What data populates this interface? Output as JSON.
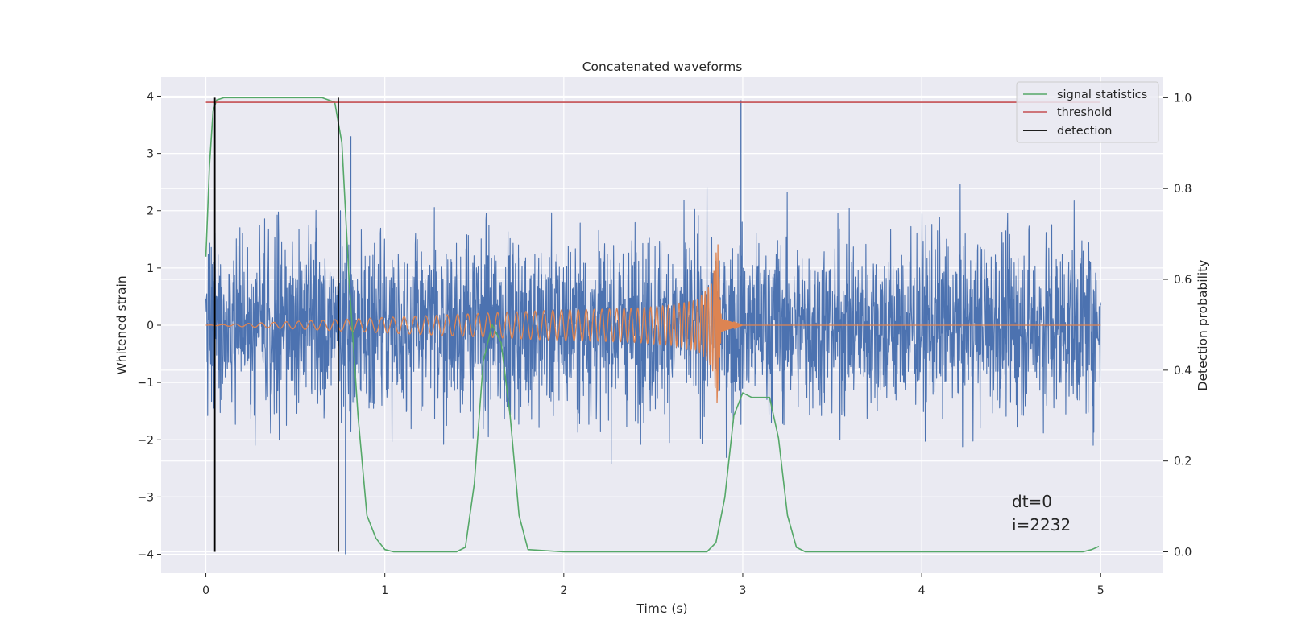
{
  "chart_data": {
    "type": "line",
    "title": "Concatenated waveforms",
    "xlabel": "Time (s)",
    "ylabel": "Whitened strain",
    "ylabel_right": "Detection probability",
    "xlim": [
      -0.25,
      5.35
    ],
    "ylim": [
      -4.33,
      4.33
    ],
    "ylim_right": [
      -0.047,
      1.045
    ],
    "x_ticks": [
      0,
      1,
      2,
      3,
      4,
      5
    ],
    "y_ticks": [
      -4,
      -3,
      -2,
      -1,
      0,
      1,
      2,
      3,
      4
    ],
    "y_ticks_right": [
      0.0,
      0.2,
      0.4,
      0.6,
      0.8,
      1.0
    ],
    "x_tick_labels": [
      "0",
      "1",
      "2",
      "3",
      "4",
      "5"
    ],
    "y_tick_labels": [
      "−4",
      "−3",
      "−2",
      "−1",
      "0",
      "1",
      "2",
      "3",
      "4"
    ],
    "y_tick_labels_right": [
      "0.0",
      "0.2",
      "0.4",
      "0.6",
      "0.8",
      "1.0"
    ],
    "grid": true,
    "legend_position": "top-right",
    "colors": {
      "strain": "#4c72b0",
      "template": "#dd8452",
      "signal_statistics": "#55a868",
      "threshold": "#c44e52",
      "detection": "#000000",
      "background": "#eaeaf2"
    },
    "series": [
      {
        "name": "",
        "axis": "left",
        "kind": "noise",
        "x_range": [
          0,
          5
        ],
        "amplitude_typical": 1.5,
        "y_max": 3.93,
        "y_min": -4.0
      },
      {
        "name": "",
        "axis": "left",
        "kind": "chirp",
        "x": [
          0.0,
          2.0,
          2.2,
          2.4,
          2.6,
          2.75,
          2.83,
          2.86,
          2.88,
          3.0,
          5.0
        ],
        "envelope": [
          0.0,
          0.27,
          0.28,
          0.3,
          0.35,
          0.45,
          0.75,
          1.5,
          0.15,
          0.0,
          0.0
        ]
      },
      {
        "name": "signal statistics",
        "axis": "right",
        "x": [
          0.0,
          0.02,
          0.04,
          0.06,
          0.1,
          0.65,
          0.72,
          0.76,
          0.8,
          0.85,
          0.9,
          0.95,
          1.0,
          1.05,
          1.4,
          1.45,
          1.5,
          1.55,
          1.6,
          1.65,
          1.7,
          1.75,
          1.8,
          2.0,
          2.8,
          2.85,
          2.9,
          2.95,
          3.0,
          3.05,
          3.1,
          3.15,
          3.2,
          3.25,
          3.3,
          3.35,
          4.9,
          4.95,
          4.99
        ],
        "values": [
          0.65,
          0.85,
          0.97,
          0.995,
          1.0,
          1.0,
          0.99,
          0.9,
          0.6,
          0.3,
          0.08,
          0.03,
          0.005,
          0.0,
          0.0,
          0.01,
          0.15,
          0.42,
          0.5,
          0.46,
          0.3,
          0.08,
          0.005,
          0.0,
          0.0,
          0.02,
          0.12,
          0.3,
          0.35,
          0.34,
          0.34,
          0.34,
          0.25,
          0.08,
          0.01,
          0.0,
          0.0,
          0.005,
          0.012
        ]
      },
      {
        "name": "threshold",
        "axis": "right",
        "x": [
          0,
          5
        ],
        "values": [
          0.99,
          0.99
        ]
      },
      {
        "name": "detection",
        "axis": "right",
        "kind": "vlines",
        "x": [
          0.05,
          0.74
        ],
        "values": [
          1.0,
          1.0
        ]
      }
    ],
    "annotations": [
      "dt=0",
      "i=2232"
    ]
  }
}
